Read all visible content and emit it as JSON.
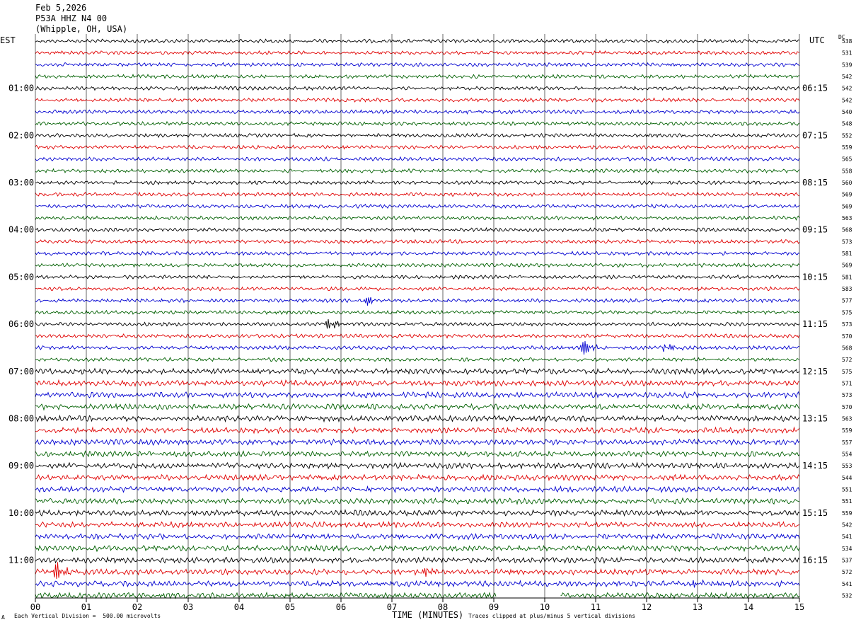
{
  "header": {
    "date": "Feb 5,2026",
    "station": "P53A HHZ N4 00",
    "location": "(Whipple, OH, USA)"
  },
  "left_timezone": "EST",
  "right_timezone": "UTC",
  "dc_header": "DC",
  "footer": {
    "scale_note": "Each Vertical Division =  500.00 microvolts",
    "clip_note": "Traces clipped at plus/minus 5 vertical divisions",
    "corner_mark": "A"
  },
  "colors": {
    "trace_cycle": [
      "#000000",
      "#e00000",
      "#0000d0",
      "#006000"
    ],
    "grid": "#000000"
  },
  "chart_data": {
    "type": "line",
    "title": "",
    "xlabel": "TIME (MINUTES)",
    "ylabel": "",
    "xlim": [
      0,
      15
    ],
    "x_ticks": [
      "00",
      "01",
      "02",
      "03",
      "04",
      "05",
      "06",
      "07",
      "08",
      "09",
      "10",
      "11",
      "12",
      "13",
      "14",
      "15"
    ],
    "y_left_labels": [
      "01:00",
      "02:00",
      "03:00",
      "04:00",
      "05:00",
      "06:00",
      "07:00",
      "08:00",
      "09:00",
      "10:00",
      "11:00"
    ],
    "y_right_labels": [
      "06:15",
      "07:15",
      "08:15",
      "09:15",
      "10:15",
      "11:15",
      "12:15",
      "13:15",
      "14:15",
      "15:15",
      "16:15"
    ],
    "hour_rows": [
      4,
      8,
      12,
      16,
      20,
      24,
      28,
      32,
      36,
      40,
      44
    ],
    "row_count": 48,
    "dc_offsets": [
      538,
      531,
      539,
      542,
      542,
      542,
      540,
      548,
      552,
      559,
      565,
      558,
      560,
      569,
      569,
      563,
      568,
      573,
      581,
      569,
      581,
      583,
      577,
      575,
      573,
      570,
      568,
      572,
      575,
      571,
      573,
      570,
      563,
      559,
      557,
      554,
      553,
      544,
      551,
      551,
      559,
      542,
      541,
      534,
      537,
      572,
      541,
      532
    ],
    "events": [
      {
        "row": 22,
        "minute": 6.5,
        "amp": 7
      },
      {
        "row": 24,
        "minute": 5.75,
        "amp": 10
      },
      {
        "row": 26,
        "minute": 10.7,
        "amp": 17
      },
      {
        "row": 26,
        "minute": 12.35,
        "amp": 8
      },
      {
        "row": 45,
        "minute": 0.4,
        "amp": 15
      },
      {
        "row": 45,
        "minute": 7.65,
        "amp": 6
      },
      {
        "row": 46,
        "minute": 12.9,
        "amp": 5
      }
    ],
    "gaps": [
      {
        "row": 47,
        "from": 9.05,
        "to": 10.3
      }
    ]
  }
}
